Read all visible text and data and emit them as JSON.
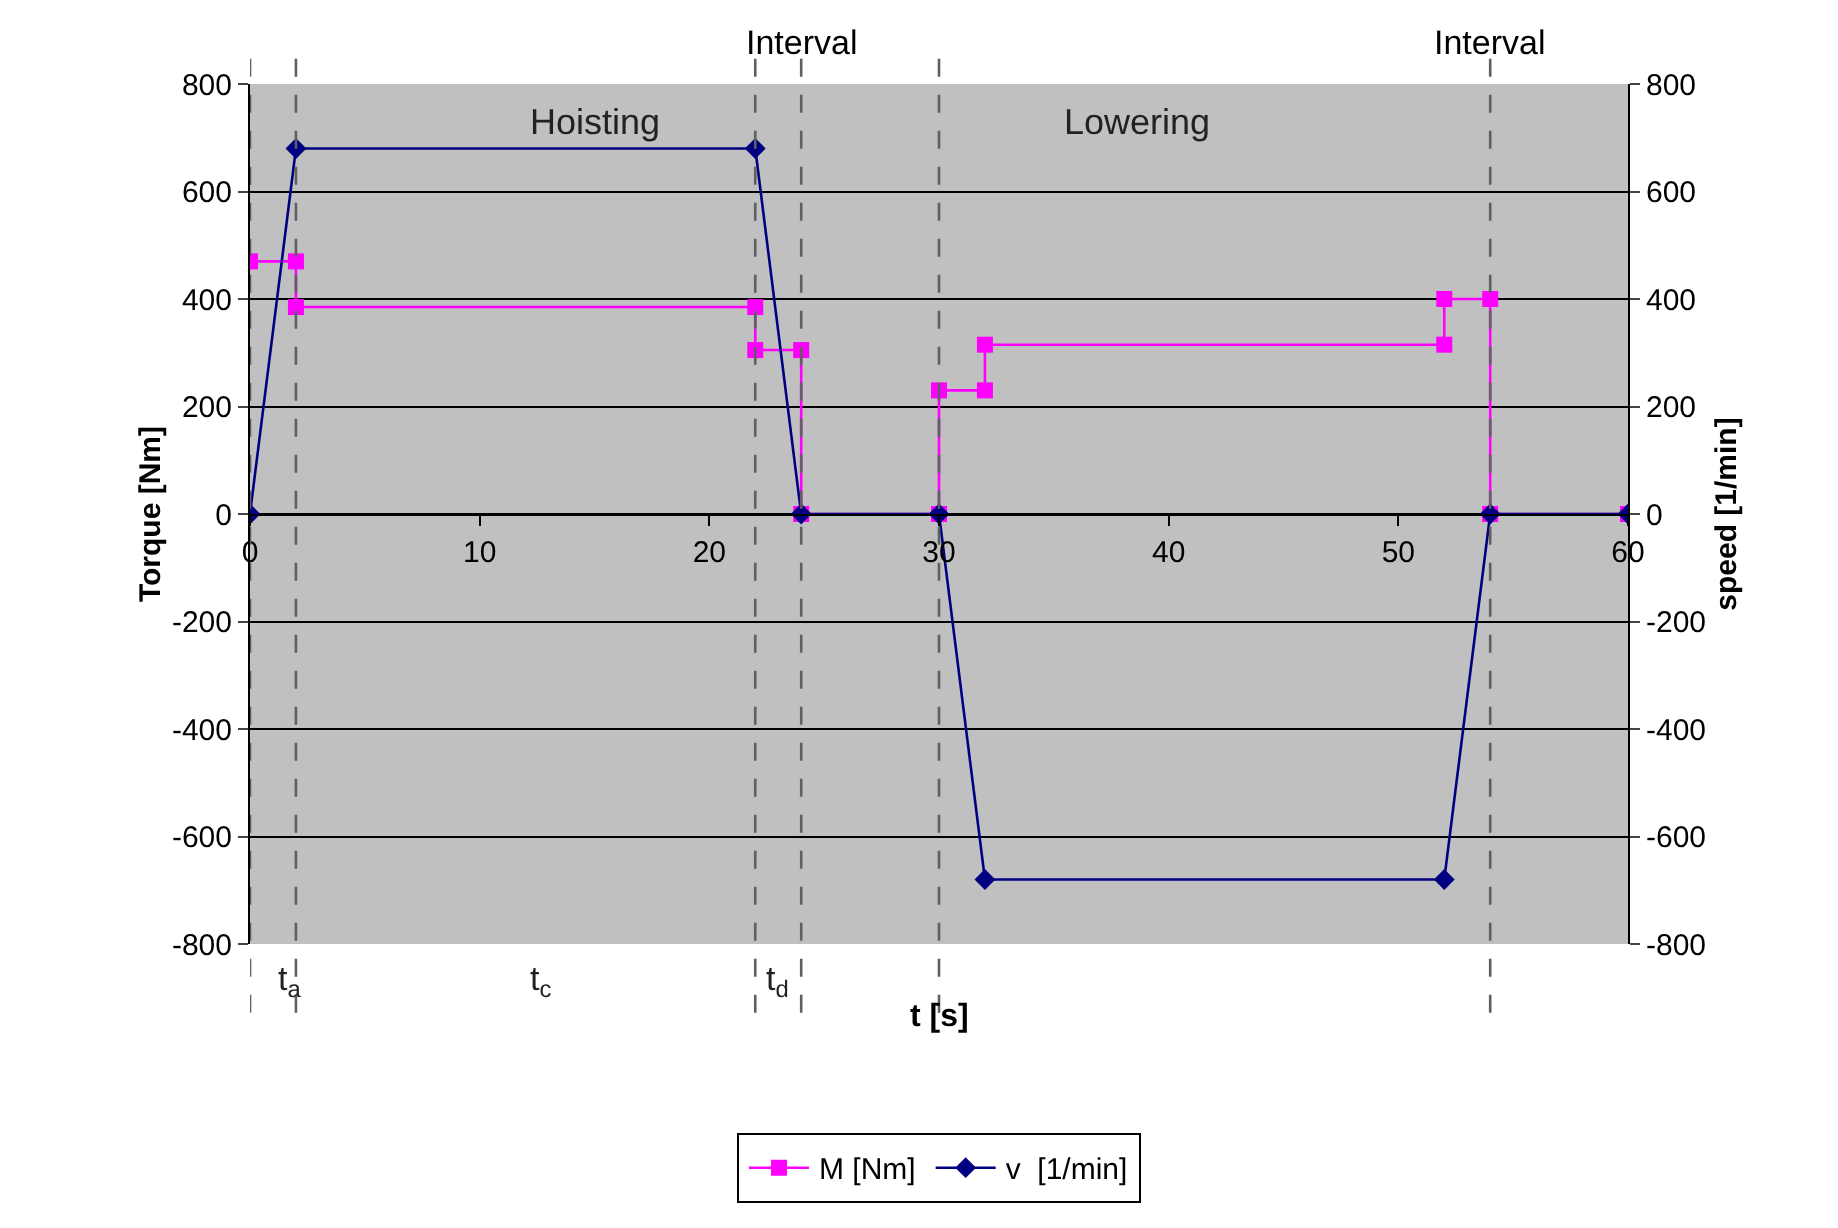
{
  "chart_data": {
    "type": "line",
    "xlabel": "t [s]",
    "ylabel": "Torque [Nm]",
    "y2label": "speed [1/min]",
    "xlim": [
      0,
      60
    ],
    "xticks": [
      0,
      10,
      20,
      30,
      40,
      50,
      60
    ],
    "ylim": [
      -800,
      800
    ],
    "yticks": [
      -800,
      -600,
      -400,
      -200,
      0,
      200,
      400,
      600,
      800
    ],
    "y2lim": [
      -800,
      800
    ],
    "y2ticks": [
      -800,
      -600,
      -400,
      -200,
      0,
      200,
      400,
      600,
      800
    ],
    "grid": "y",
    "legend": "bottom",
    "line_style": "solid",
    "series": [
      {
        "name": "M [Nm]",
        "color": "#ff00ff",
        "marker": "square",
        "x": [
          0,
          2,
          2,
          22,
          22,
          24,
          24,
          30,
          30,
          32,
          32,
          52,
          52,
          54,
          54,
          60
        ],
        "values": [
          470,
          470,
          385,
          385,
          305,
          305,
          0,
          0,
          230,
          230,
          315,
          315,
          400,
          400,
          0,
          0
        ]
      },
      {
        "name": "v  [1/min]",
        "color": "#000080",
        "marker": "diamond",
        "axis": "y2",
        "x": [
          0,
          2,
          22,
          24,
          30,
          32,
          52,
          54,
          60
        ],
        "values": [
          0,
          680,
          680,
          0,
          0,
          -680,
          -680,
          0,
          0
        ]
      }
    ],
    "ref_lines": [
      {
        "axis": "x",
        "value": 0,
        "label": null,
        "color": "#606060",
        "line_style": "dashed"
      },
      {
        "axis": "x",
        "value": 2,
        "label": null,
        "color": "#606060",
        "line_style": "dashed"
      },
      {
        "axis": "x",
        "value": 22,
        "label": null,
        "color": "#606060",
        "line_style": "dashed"
      },
      {
        "axis": "x",
        "value": 24,
        "label": "Interval",
        "color": "#606060",
        "line_style": "dashed"
      },
      {
        "axis": "x",
        "value": 30,
        "label": null,
        "color": "#606060",
        "line_style": "dashed"
      },
      {
        "axis": "x",
        "value": 54,
        "label": "Interval",
        "color": "#606060",
        "line_style": "dashed"
      }
    ],
    "annotations": [
      "Hoisting",
      "Lowering",
      "t$_{a}$",
      "t$_{c}$",
      "t$_{d}$"
    ]
  }
}
